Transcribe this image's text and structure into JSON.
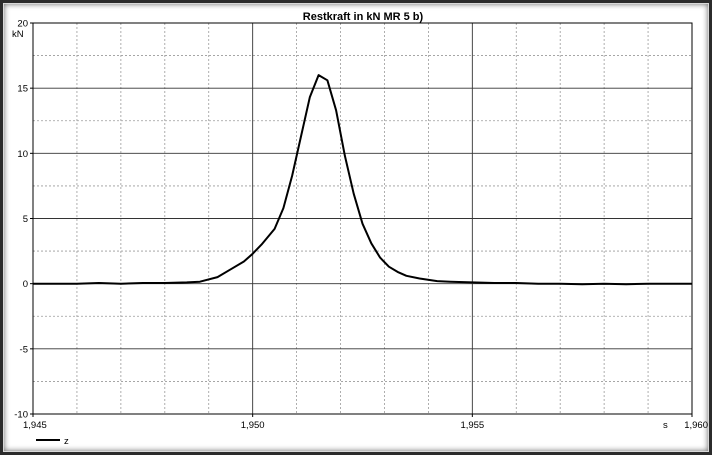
{
  "chart_data": {
    "type": "line",
    "title": "Restkraft in kN MR 5 b)",
    "ylabel": "kN",
    "xlabel": "s",
    "xlim": [
      1945,
      1960
    ],
    "ylim": [
      -10,
      20
    ],
    "x_ticks": [
      {
        "value": 1945,
        "label": "1,945"
      },
      {
        "value": 1950,
        "label": "1,950"
      },
      {
        "value": 1955,
        "label": "1,955"
      },
      {
        "value": 1960,
        "label": "1,960"
      }
    ],
    "y_ticks": [
      {
        "value": 20,
        "label": "20"
      },
      {
        "value": 15,
        "label": "15"
      },
      {
        "value": 10,
        "label": "10"
      },
      {
        "value": 5,
        "label": "5"
      },
      {
        "value": 0,
        "label": "0"
      },
      {
        "value": -5,
        "label": "-5"
      },
      {
        "value": -10,
        "label": "-10"
      }
    ],
    "x_minor_step": 1,
    "y_minor_step": 2.5,
    "grid": true,
    "legend_position": "bottom-left",
    "series": [
      {
        "name": "z",
        "color": "#000000",
        "x": [
          1945,
          1946,
          1946.5,
          1947,
          1947.5,
          1948,
          1948.5,
          1948.8,
          1949.2,
          1949.5,
          1949.8,
          1950.0,
          1950.2,
          1950.5,
          1950.7,
          1950.9,
          1951.1,
          1951.3,
          1951.5,
          1951.7,
          1951.9,
          1952.1,
          1952.3,
          1952.5,
          1952.7,
          1952.9,
          1953.1,
          1953.3,
          1953.5,
          1953.8,
          1954.2,
          1954.5,
          1955.0,
          1955.5,
          1956.0,
          1956.5,
          1957.0,
          1957.5,
          1958.0,
          1958.5,
          1959.0,
          1959.5,
          1960.0
        ],
        "y": [
          0,
          0,
          0.05,
          0,
          0.05,
          0.05,
          0.1,
          0.15,
          0.5,
          1.1,
          1.7,
          2.3,
          3.0,
          4.2,
          5.8,
          8.3,
          11.3,
          14.3,
          16.0,
          15.6,
          13.3,
          9.8,
          6.9,
          4.6,
          3.1,
          2.0,
          1.3,
          0.9,
          0.6,
          0.4,
          0.2,
          0.15,
          0.1,
          0.05,
          0.05,
          0.0,
          0.0,
          -0.05,
          0.0,
          -0.05,
          0.0,
          0.0,
          0.0
        ]
      }
    ]
  }
}
